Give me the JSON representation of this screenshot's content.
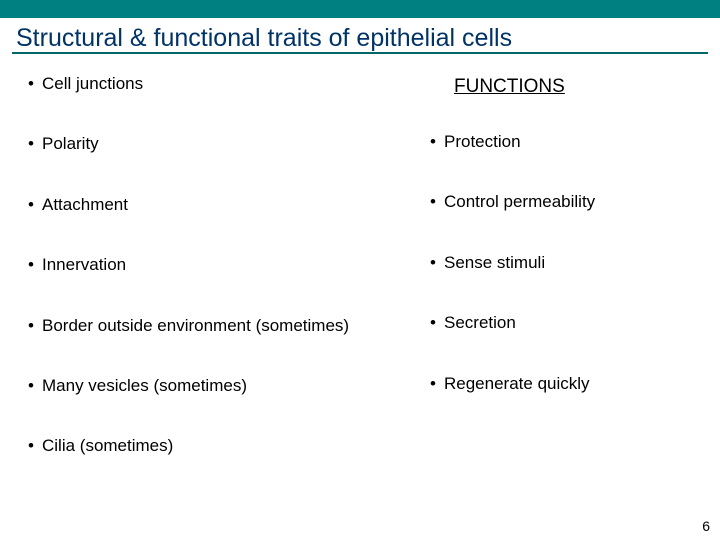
{
  "colors": {
    "top_bar": "#008080",
    "divider": "#006666",
    "title": "#003366",
    "text": "#000000",
    "background": "#ffffff"
  },
  "title": "Structural & functional traits of epithelial cells",
  "left_column": {
    "items": [
      "Cell junctions",
      "Polarity",
      "Attachment",
      "Innervation",
      "Border outside environment (sometimes)",
      "Many vesicles (sometimes)",
      "Cilia (sometimes)"
    ]
  },
  "right_column": {
    "header": "FUNCTIONS",
    "items": [
      "Protection",
      "Control permeability",
      "Sense stimuli",
      "Secretion",
      "Regenerate quickly"
    ]
  },
  "page_number": "6",
  "typography": {
    "title_fontsize": 25,
    "body_fontsize": 17,
    "header_fontsize": 19,
    "page_num_fontsize": 14
  }
}
